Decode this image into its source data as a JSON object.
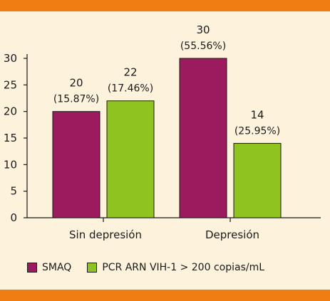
{
  "chart_data": {
    "type": "bar",
    "categories": [
      "Sin depresión",
      "Depresión"
    ],
    "series": [
      {
        "name": "SMAQ",
        "values": [
          20,
          30
        ],
        "labels": [
          "(15.87%)",
          "(55.56%)"
        ],
        "color": "#9c1a5e"
      },
      {
        "name": "PCR ARN VIH-1 > 200 copias/mL",
        "values": [
          22,
          14
        ],
        "labels": [
          "(17.46%)",
          "(25.95%)"
        ],
        "color": "#8fc31f"
      }
    ],
    "ylim": [
      0,
      30
    ],
    "yticks": [
      "0",
      "5",
      "10",
      "15",
      "20",
      "25",
      "30"
    ],
    "title": "",
    "xlabel": "",
    "ylabel": "",
    "grid": false,
    "legend_position": "bottom"
  },
  "colors": {
    "background": "#fdf3dc",
    "accent_band": "#ef7d14",
    "axis": "#1a1a1a"
  }
}
